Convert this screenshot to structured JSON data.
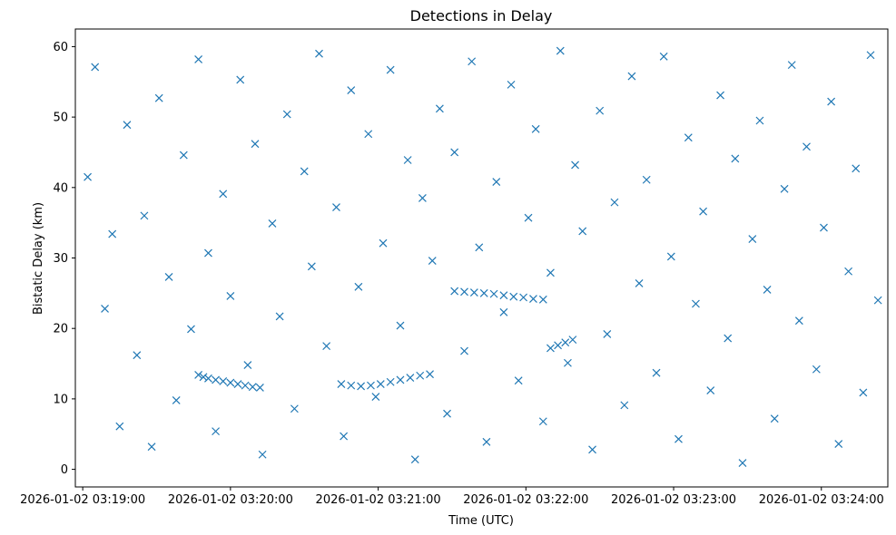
{
  "chart_data": {
    "type": "scatter",
    "title": "Detections in Delay",
    "xlabel": "Time (UTC)",
    "ylabel": "Bistatic Delay (km)",
    "x_ticks": [
      "2026-01-02 03:19:00",
      "2026-01-02 03:20:00",
      "2026-01-02 03:21:00",
      "2026-01-02 03:22:00",
      "2026-01-02 03:23:00",
      "2026-01-02 03:24:00"
    ],
    "y_ticks": [
      "0",
      "10",
      "20",
      "30",
      "40",
      "50",
      "60"
    ],
    "ylim": [
      -2.5,
      62.5
    ],
    "xlim": [
      "2026-01-02 03:18:57",
      "2026-01-02 03:24:27"
    ],
    "marker": "x",
    "grid": false,
    "colors": {
      "series": "#1f77b4"
    },
    "series": [
      {
        "name": "",
        "points": [
          [
            "2026-01-02 03:19:47",
            13.4
          ],
          [
            "2026-01-02 03:19:49",
            13.1
          ],
          [
            "2026-01-02 03:19:51",
            12.9
          ],
          [
            "2026-01-02 03:19:54",
            12.7
          ],
          [
            "2026-01-02 03:19:57",
            12.5
          ],
          [
            "2026-01-02 03:20:00",
            12.3
          ],
          [
            "2026-01-02 03:20:03",
            12.1
          ],
          [
            "2026-01-02 03:20:06",
            11.9
          ],
          [
            "2026-01-02 03:20:09",
            11.7
          ],
          [
            "2026-01-02 03:20:12",
            11.6
          ],
          [
            "2026-01-02 03:20:45",
            12.1
          ],
          [
            "2026-01-02 03:20:49",
            11.9
          ],
          [
            "2026-01-02 03:20:53",
            11.8
          ],
          [
            "2026-01-02 03:20:57",
            11.9
          ],
          [
            "2026-01-02 03:21:01",
            12.1
          ],
          [
            "2026-01-02 03:21:05",
            12.4
          ],
          [
            "2026-01-02 03:21:09",
            12.7
          ],
          [
            "2026-01-02 03:21:13",
            13.0
          ],
          [
            "2026-01-02 03:21:17",
            13.3
          ],
          [
            "2026-01-02 03:21:21",
            13.5
          ],
          [
            "2026-01-02 03:21:31",
            25.3
          ],
          [
            "2026-01-02 03:21:35",
            25.2
          ],
          [
            "2026-01-02 03:21:39",
            25.1
          ],
          [
            "2026-01-02 03:21:43",
            25.0
          ],
          [
            "2026-01-02 03:21:47",
            24.9
          ],
          [
            "2026-01-02 03:21:51",
            24.7
          ],
          [
            "2026-01-02 03:21:55",
            24.5
          ],
          [
            "2026-01-02 03:21:59",
            24.4
          ],
          [
            "2026-01-02 03:22:03",
            24.2
          ],
          [
            "2026-01-02 03:22:07",
            24.1
          ],
          [
            "2026-01-02 03:22:10",
            17.2
          ],
          [
            "2026-01-02 03:22:13",
            17.6
          ],
          [
            "2026-01-02 03:22:16",
            18.0
          ],
          [
            "2026-01-02 03:22:19",
            18.4
          ],
          [
            "2026-01-02 03:19:02",
            41.5
          ],
          [
            "2026-01-02 03:19:05",
            57.1
          ],
          [
            "2026-01-02 03:19:09",
            22.8
          ],
          [
            "2026-01-02 03:19:12",
            33.4
          ],
          [
            "2026-01-02 03:19:15",
            6.1
          ],
          [
            "2026-01-02 03:19:18",
            48.9
          ],
          [
            "2026-01-02 03:19:22",
            16.2
          ],
          [
            "2026-01-02 03:19:25",
            36.0
          ],
          [
            "2026-01-02 03:19:28",
            3.2
          ],
          [
            "2026-01-02 03:19:31",
            52.7
          ],
          [
            "2026-01-02 03:19:35",
            27.3
          ],
          [
            "2026-01-02 03:19:38",
            9.8
          ],
          [
            "2026-01-02 03:19:41",
            44.6
          ],
          [
            "2026-01-02 03:19:44",
            19.9
          ],
          [
            "2026-01-02 03:19:47",
            58.2
          ],
          [
            "2026-01-02 03:19:51",
            30.7
          ],
          [
            "2026-01-02 03:19:54",
            5.4
          ],
          [
            "2026-01-02 03:19:57",
            39.1
          ],
          [
            "2026-01-02 03:20:00",
            24.6
          ],
          [
            "2026-01-02 03:20:04",
            55.3
          ],
          [
            "2026-01-02 03:20:07",
            14.8
          ],
          [
            "2026-01-02 03:20:10",
            46.2
          ],
          [
            "2026-01-02 03:20:13",
            2.1
          ],
          [
            "2026-01-02 03:20:17",
            34.9
          ],
          [
            "2026-01-02 03:20:20",
            21.7
          ],
          [
            "2026-01-02 03:20:23",
            50.4
          ],
          [
            "2026-01-02 03:20:26",
            8.6
          ],
          [
            "2026-01-02 03:20:30",
            42.3
          ],
          [
            "2026-01-02 03:20:33",
            28.8
          ],
          [
            "2026-01-02 03:20:36",
            59.0
          ],
          [
            "2026-01-02 03:20:39",
            17.5
          ],
          [
            "2026-01-02 03:20:43",
            37.2
          ],
          [
            "2026-01-02 03:20:46",
            4.7
          ],
          [
            "2026-01-02 03:20:49",
            53.8
          ],
          [
            "2026-01-02 03:20:52",
            25.9
          ],
          [
            "2026-01-02 03:20:56",
            47.6
          ],
          [
            "2026-01-02 03:20:59",
            10.3
          ],
          [
            "2026-01-02 03:21:02",
            32.1
          ],
          [
            "2026-01-02 03:21:05",
            56.7
          ],
          [
            "2026-01-02 03:21:09",
            20.4
          ],
          [
            "2026-01-02 03:21:12",
            43.9
          ],
          [
            "2026-01-02 03:21:15",
            1.4
          ],
          [
            "2026-01-02 03:21:18",
            38.5
          ],
          [
            "2026-01-02 03:21:22",
            29.6
          ],
          [
            "2026-01-02 03:21:25",
            51.2
          ],
          [
            "2026-01-02 03:21:28",
            7.9
          ],
          [
            "2026-01-02 03:21:31",
            45.0
          ],
          [
            "2026-01-02 03:21:35",
            16.8
          ],
          [
            "2026-01-02 03:21:38",
            57.9
          ],
          [
            "2026-01-02 03:21:41",
            31.5
          ],
          [
            "2026-01-02 03:21:44",
            3.9
          ],
          [
            "2026-01-02 03:21:48",
            40.8
          ],
          [
            "2026-01-02 03:21:51",
            22.3
          ],
          [
            "2026-01-02 03:21:54",
            54.6
          ],
          [
            "2026-01-02 03:21:57",
            12.6
          ],
          [
            "2026-01-02 03:22:01",
            35.7
          ],
          [
            "2026-01-02 03:22:04",
            48.3
          ],
          [
            "2026-01-02 03:22:07",
            6.8
          ],
          [
            "2026-01-02 03:22:10",
            27.9
          ],
          [
            "2026-01-02 03:22:14",
            59.4
          ],
          [
            "2026-01-02 03:22:17",
            15.1
          ],
          [
            "2026-01-02 03:22:20",
            43.2
          ],
          [
            "2026-01-02 03:22:23",
            33.8
          ],
          [
            "2026-01-02 03:22:27",
            2.8
          ],
          [
            "2026-01-02 03:22:30",
            50.9
          ],
          [
            "2026-01-02 03:22:33",
            19.2
          ],
          [
            "2026-01-02 03:22:36",
            37.9
          ],
          [
            "2026-01-02 03:22:40",
            9.1
          ],
          [
            "2026-01-02 03:22:43",
            55.8
          ],
          [
            "2026-01-02 03:22:46",
            26.4
          ],
          [
            "2026-01-02 03:22:49",
            41.1
          ],
          [
            "2026-01-02 03:22:53",
            13.7
          ],
          [
            "2026-01-02 03:22:56",
            58.6
          ],
          [
            "2026-01-02 03:22:59",
            30.2
          ],
          [
            "2026-01-02 03:23:02",
            4.3
          ],
          [
            "2026-01-02 03:23:06",
            47.1
          ],
          [
            "2026-01-02 03:23:09",
            23.5
          ],
          [
            "2026-01-02 03:23:12",
            36.6
          ],
          [
            "2026-01-02 03:23:15",
            11.2
          ],
          [
            "2026-01-02 03:23:19",
            53.1
          ],
          [
            "2026-01-02 03:23:22",
            18.6
          ],
          [
            "2026-01-02 03:23:25",
            44.1
          ],
          [
            "2026-01-02 03:23:28",
            0.9
          ],
          [
            "2026-01-02 03:23:32",
            32.7
          ],
          [
            "2026-01-02 03:23:35",
            49.5
          ],
          [
            "2026-01-02 03:23:38",
            25.5
          ],
          [
            "2026-01-02 03:23:41",
            7.2
          ],
          [
            "2026-01-02 03:23:45",
            39.8
          ],
          [
            "2026-01-02 03:23:48",
            57.4
          ],
          [
            "2026-01-02 03:23:51",
            21.1
          ],
          [
            "2026-01-02 03:23:54",
            45.8
          ],
          [
            "2026-01-02 03:23:58",
            14.2
          ],
          [
            "2026-01-02 03:24:01",
            34.3
          ],
          [
            "2026-01-02 03:24:04",
            52.2
          ],
          [
            "2026-01-02 03:24:07",
            3.6
          ],
          [
            "2026-01-02 03:24:11",
            28.1
          ],
          [
            "2026-01-02 03:24:14",
            42.7
          ],
          [
            "2026-01-02 03:24:17",
            10.9
          ],
          [
            "2026-01-02 03:24:20",
            58.8
          ],
          [
            "2026-01-02 03:24:23",
            24.0
          ]
        ]
      }
    ]
  }
}
